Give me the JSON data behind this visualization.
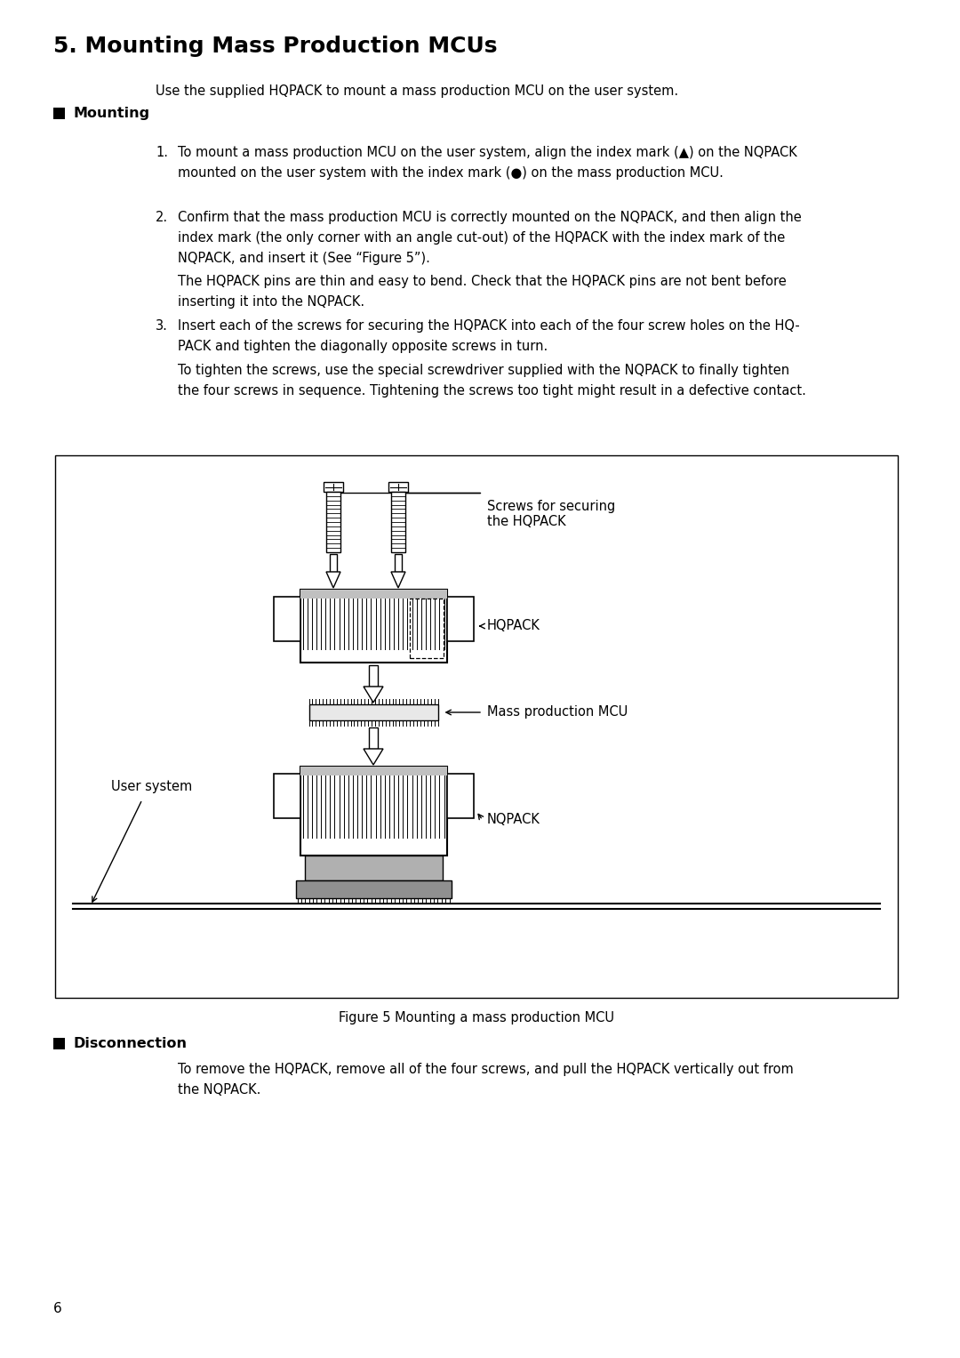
{
  "title": "5. Mounting Mass Production MCUs",
  "bg_color": "#ffffff",
  "text_color": "#000000",
  "page_number": "6",
  "intro_text": "Use the supplied HQPACK to mount a mass production MCU on the user system.",
  "section1_title": "Mounting",
  "section2_title": "Disconnection",
  "section2_text": "To remove the HQPACK, remove all of the four screws, and pull the HQPACK vertically out from\nthe NQPACK.",
  "figure_caption": "Figure 5 Mounting a mass production MCU",
  "diagram_labels": {
    "screws": "Screws for securing\nthe HQPACK",
    "hqpack": "HQPACK",
    "mcu": "Mass production MCU",
    "nqpack": "NQPACK",
    "user_system": "User system"
  },
  "title_fontsize": 18,
  "body_fontsize": 10.5,
  "section_fontsize": 11.5,
  "label_fontsize": 10.5
}
